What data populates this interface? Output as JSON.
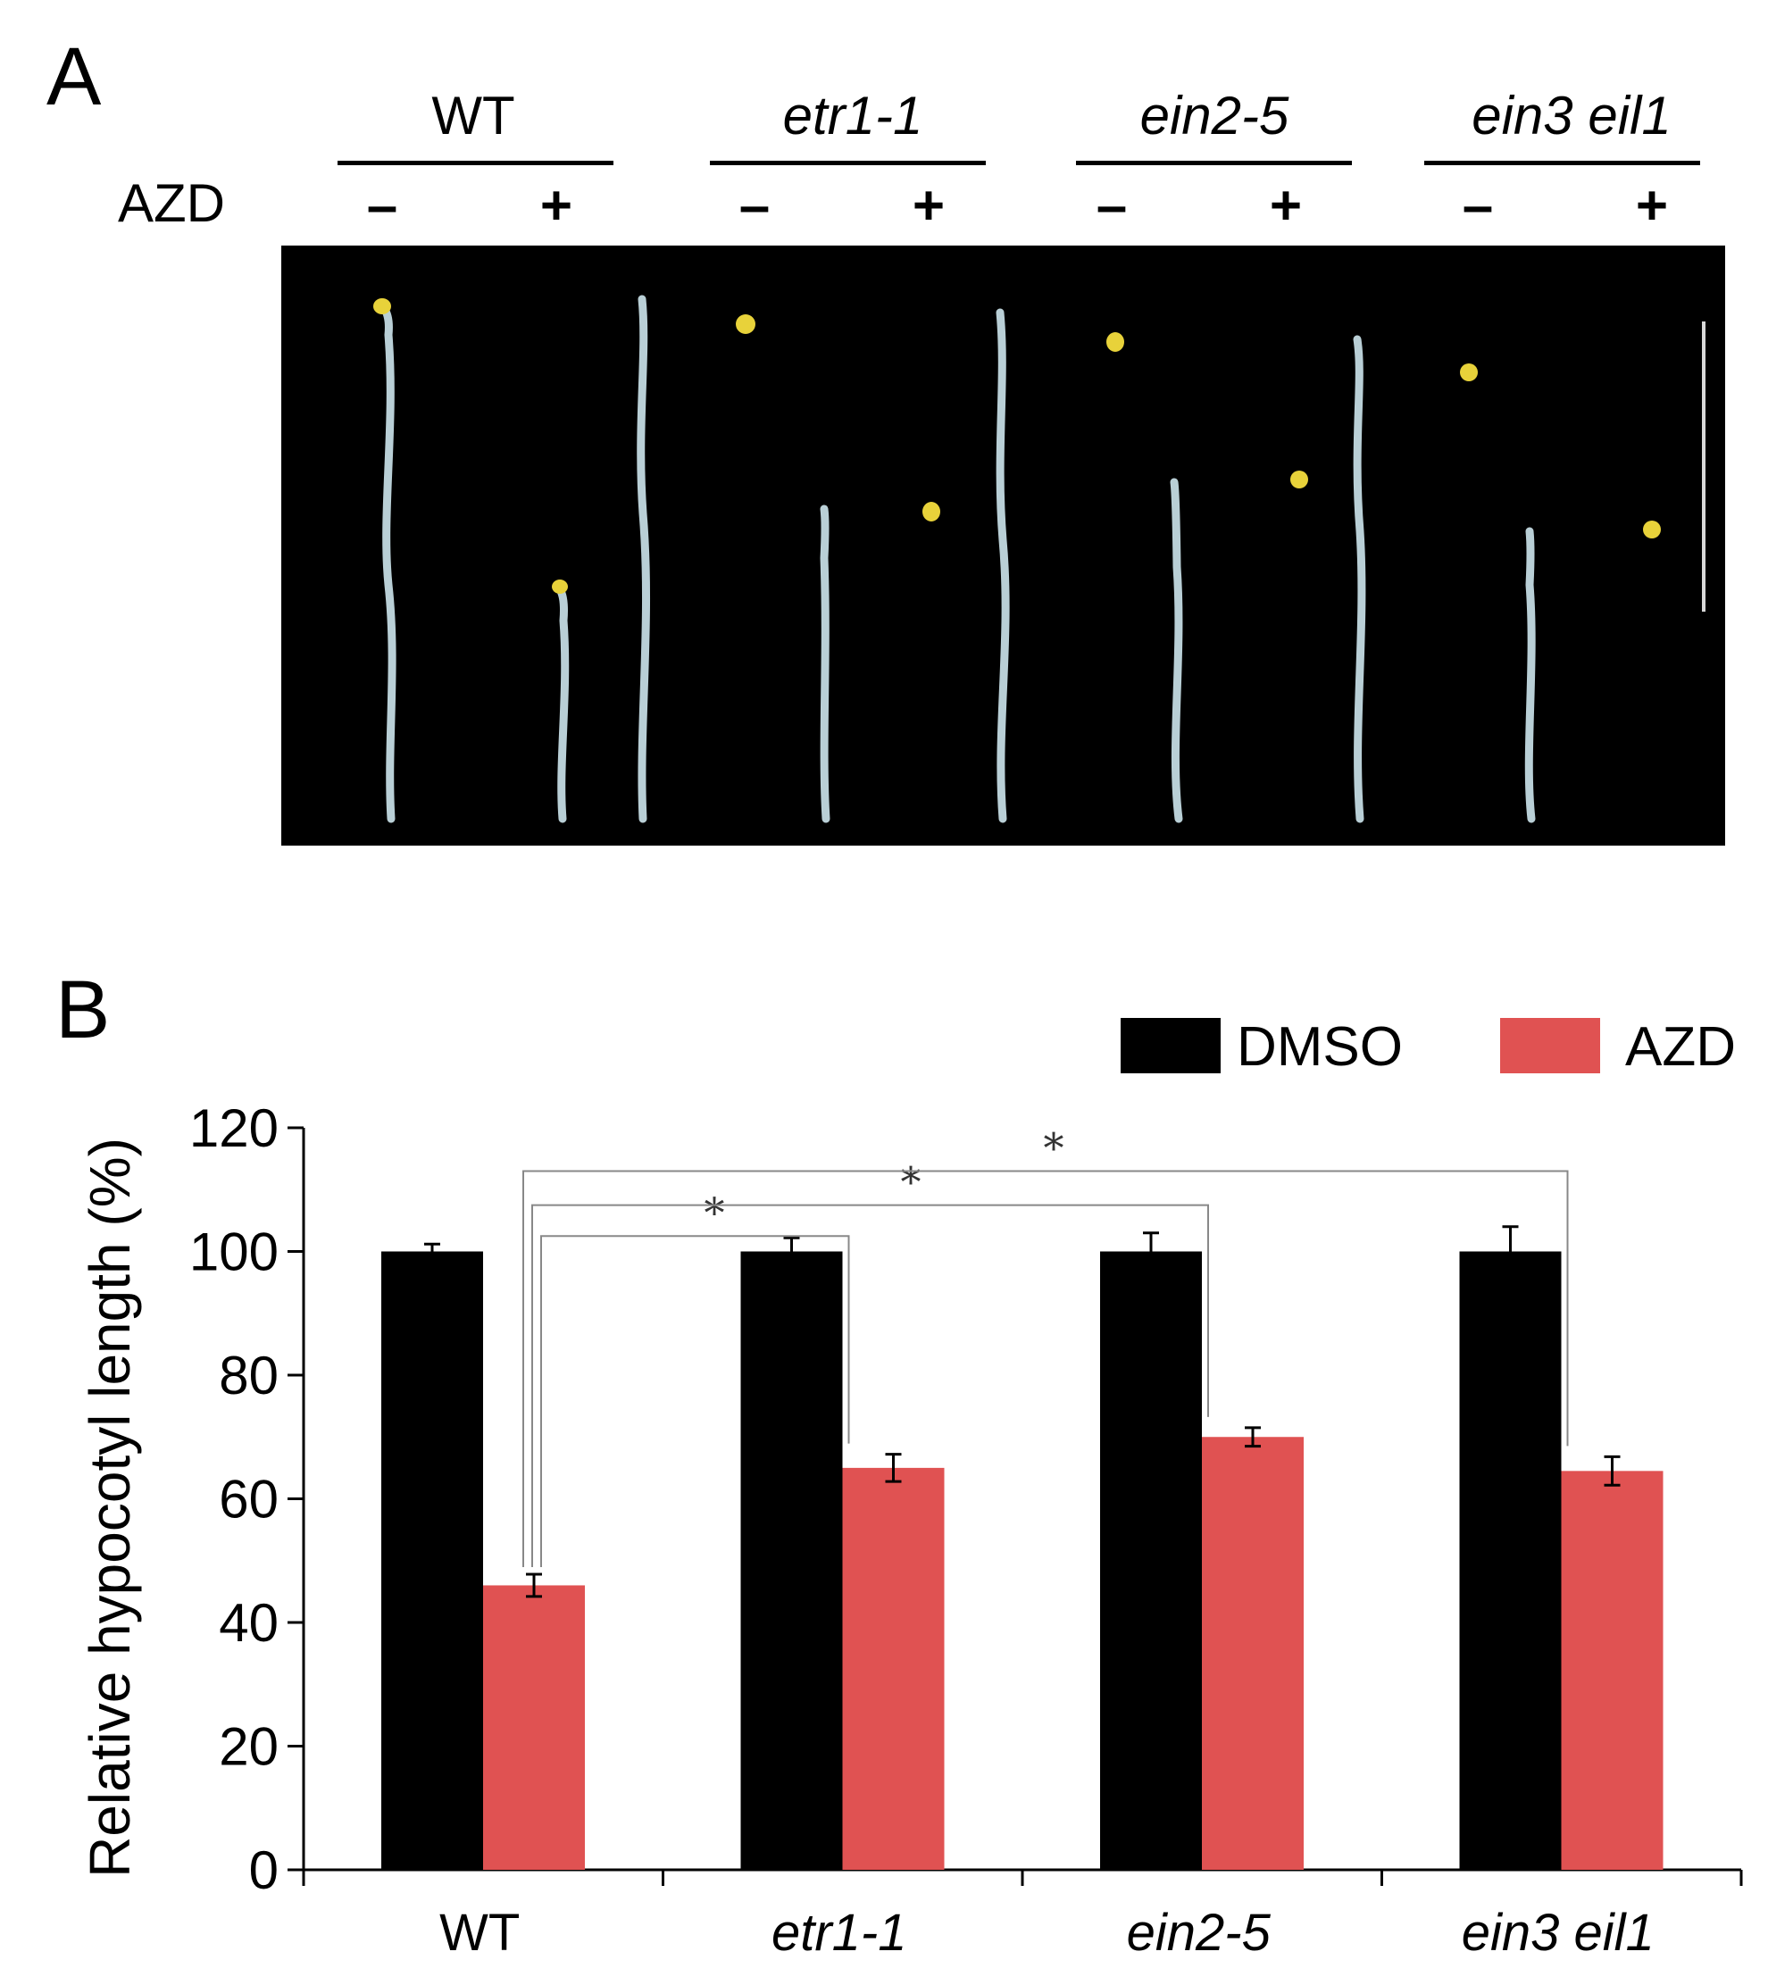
{
  "panel_a": {
    "letter": "A",
    "treatment_label": "AZD",
    "genotypes": [
      {
        "name": "WT",
        "italic": false
      },
      {
        "name": "etr1-1",
        "italic": true
      },
      {
        "name": "ein2-5",
        "italic": true
      },
      {
        "name": "ein3 eil1",
        "italic": true
      }
    ],
    "minus": "–",
    "plus": "+",
    "photo_description_icon": "seedling-photo-icon"
  },
  "panel_b": {
    "letter": "B",
    "legend": [
      {
        "label": "DMSO",
        "color": "#000000"
      },
      {
        "label": "AZD",
        "color": "#e05252"
      }
    ]
  },
  "chart_data": {
    "type": "bar",
    "title": "",
    "xlabel": "",
    "ylabel": "Relative hypocotyl length (%)",
    "ylim": [
      0,
      120
    ],
    "yticks": [
      0,
      20,
      40,
      60,
      80,
      100,
      120
    ],
    "categories": [
      "WT",
      "etr1-1",
      "ein2-5",
      "ein3 eil1"
    ],
    "category_italic": [
      false,
      true,
      true,
      true
    ],
    "series": [
      {
        "name": "DMSO",
        "color": "#000000",
        "values": [
          100,
          100,
          100,
          100
        ],
        "errors": [
          1.2,
          2.2,
          3.0,
          4.0
        ]
      },
      {
        "name": "AZD",
        "color": "#e05252",
        "values": [
          46,
          65,
          70,
          64.5
        ],
        "errors": [
          1.8,
          2.2,
          1.5,
          2.3
        ]
      }
    ],
    "significance": [
      {
        "from": "WT",
        "to": "etr1-1",
        "label": "*"
      },
      {
        "from": "WT",
        "to": "ein2-5",
        "label": "*"
      },
      {
        "from": "WT",
        "to": "ein3 eil1",
        "label": "*"
      }
    ]
  }
}
